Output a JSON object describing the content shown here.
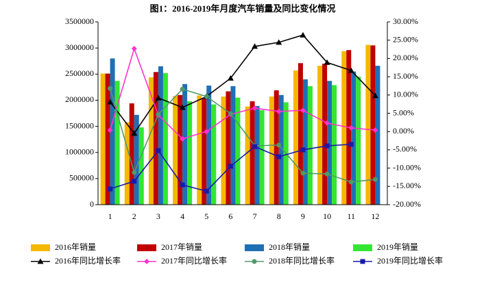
{
  "chart_data": {
    "type": "bar",
    "title": "图1：2016-2019年月度汽车销量及同比变化情况",
    "categories": [
      "1",
      "2",
      "3",
      "4",
      "5",
      "6",
      "7",
      "8",
      "9",
      "10",
      "11",
      "12"
    ],
    "ylim": [
      0,
      3500000
    ],
    "yticks": [
      0,
      500000,
      1000000,
      1500000,
      2000000,
      2500000,
      3000000,
      3500000
    ],
    "y2lim": [
      -20,
      30
    ],
    "y2ticks": [
      {
        "value": -20,
        "label": "-20.00%"
      },
      {
        "value": -15,
        "label": "-15.00%"
      },
      {
        "value": -10,
        "label": "-10.00%"
      },
      {
        "value": -5,
        "label": "-5.00%"
      },
      {
        "value": 0,
        "label": "0.00%"
      },
      {
        "value": 5,
        "label": "5.00%"
      },
      {
        "value": 10,
        "label": "10.00%"
      },
      {
        "value": 15,
        "label": "15.00%"
      },
      {
        "value": 20,
        "label": "20.00%"
      },
      {
        "value": 25,
        "label": "25.00%"
      },
      {
        "value": 30,
        "label": "30.00%"
      }
    ],
    "grid": false,
    "series": [
      {
        "name": "2016年销量",
        "type": "bar",
        "color": "#f5b800",
        "values": [
          2510000,
          1580000,
          2440000,
          2080000,
          2090000,
          2070000,
          1880000,
          2070000,
          2570000,
          2660000,
          2940000,
          3060000
        ]
      },
      {
        "name": "2017年销量",
        "type": "bar",
        "color": "#c00000",
        "values": [
          2510000,
          1940000,
          2540000,
          2100000,
          2030000,
          2170000,
          1980000,
          2190000,
          2710000,
          2700000,
          2960000,
          3050000
        ]
      },
      {
        "name": "2018年销量",
        "type": "bar",
        "color": "#1f6fb5",
        "values": [
          2800000,
          1720000,
          2650000,
          2310000,
          2280000,
          2270000,
          1890000,
          2100000,
          2400000,
          2370000,
          2550000,
          2660000
        ]
      },
      {
        "name": "2019年销量",
        "type": "bar",
        "color": "#33e633",
        "values": [
          2370000,
          1480000,
          2520000,
          1980000,
          1920000,
          2050000,
          1810000,
          1960000,
          2270000,
          2290000,
          2450000,
          null
        ]
      },
      {
        "name": "2016年同比增长率",
        "type": "line",
        "axis": "y2",
        "marker": "triangle",
        "color": "#000000",
        "values": [
          8.1,
          -0.5,
          9.2,
          6.6,
          9.6,
          14.6,
          23.3,
          24.4,
          26.4,
          18.9,
          16.7,
          9.8
        ]
      },
      {
        "name": "2017年同比增长率",
        "type": "line",
        "axis": "y2",
        "marker": "diamond",
        "color": "#ff33cc",
        "values": [
          0.4,
          22.7,
          4.5,
          -2.0,
          0.0,
          4.7,
          6.4,
          5.5,
          5.8,
          2.3,
          1.0,
          0.4
        ]
      },
      {
        "name": "2018年同比增长率",
        "type": "line",
        "axis": "y2",
        "marker": "circle",
        "color": "#4f9a6a",
        "values": [
          11.8,
          -11.2,
          4.7,
          11.6,
          9.6,
          4.9,
          -3.9,
          -3.7,
          -11.4,
          -11.6,
          -13.8,
          -13.1
        ]
      },
      {
        "name": "2019年同比增长率",
        "type": "line",
        "axis": "y2",
        "marker": "square",
        "color": "#1a1aa8",
        "values": [
          -15.7,
          -13.6,
          -5.2,
          -14.6,
          -16.3,
          -9.5,
          -4.1,
          -6.9,
          -5.0,
          -3.9,
          -3.5,
          null
        ]
      }
    ]
  }
}
